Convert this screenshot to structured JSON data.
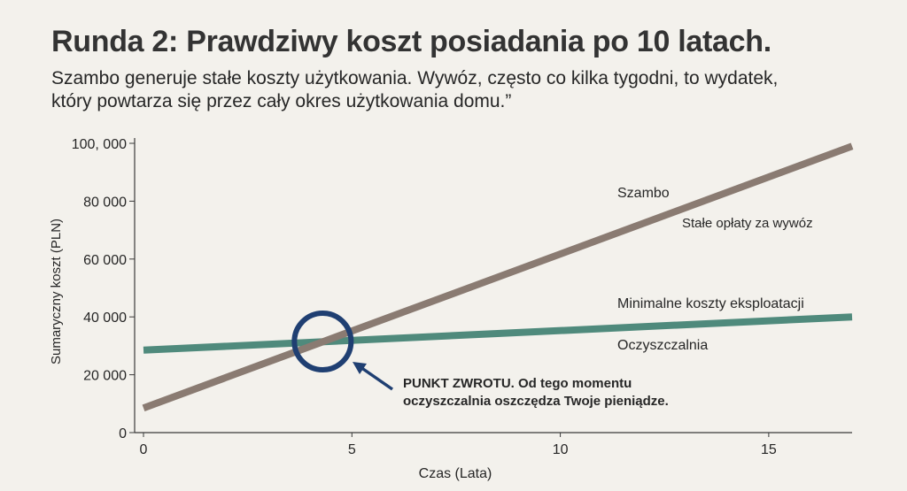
{
  "header": {
    "title": "Runda 2: Prawdziwy koszt posiadania po 10 latach.",
    "subtitle_line1": " Szambo generuje stałe koszty użytkowania. Wywóz, często co kilka tygodni, to wydatek,",
    "subtitle_line2": "który powtarza się przez cały okres użytkowania domu.”"
  },
  "chart_data": {
    "type": "line",
    "xlabel": "Czas (Lata)",
    "ylabel": "Sumaryczny koszt (PLN)",
    "xlim": [
      0,
      17
    ],
    "ylim": [
      0,
      100000
    ],
    "x_ticks": [
      0,
      5,
      10,
      15
    ],
    "x_tick_labels": [
      "0",
      "5",
      "10",
      "15"
    ],
    "y_ticks": [
      0,
      20000,
      40000,
      60000,
      80000,
      100000
    ],
    "y_tick_labels": [
      "0",
      "20 000",
      "40 000",
      "60 000",
      "80 000",
      "100, 000"
    ],
    "grid": false,
    "series": [
      {
        "name": "Szambo",
        "note": "Stałe opłaty za wywóz",
        "color": "#8a7b72",
        "x": [
          0,
          17
        ],
        "y": [
          8500,
          99000
        ]
      },
      {
        "name": "Oczyszczalnia",
        "note": "Minimalne koszty eksploatacji",
        "color": "#4f8a7c",
        "x": [
          0,
          17
        ],
        "y": [
          28500,
          40000
        ]
      }
    ],
    "annotation": {
      "x": 4.3,
      "y": 31500,
      "circle_color": "#1f3f72",
      "arrow_color": "#1f3f72",
      "text_line1": "PUNKT ZWROTU. Od tego momentu",
      "text_line2": "oczyszczalnia oszczędza Twoje pieniądze."
    }
  }
}
